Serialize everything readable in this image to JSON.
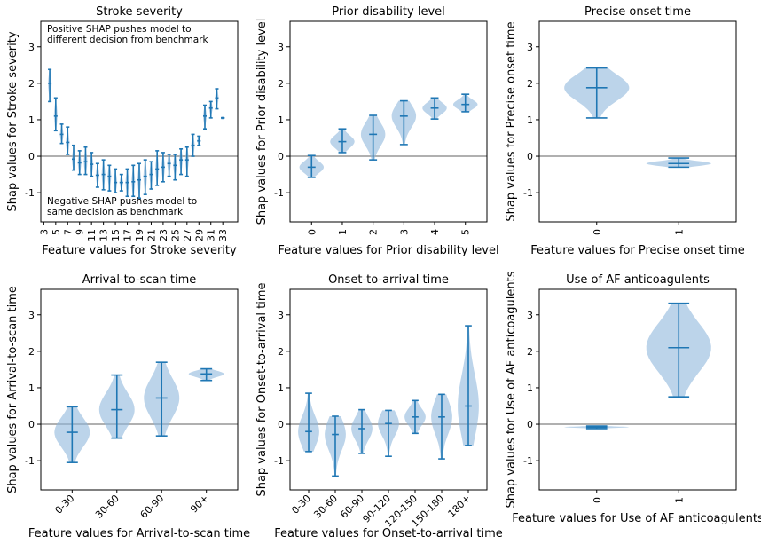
{
  "figure": {
    "background": "#ffffff"
  },
  "colors": {
    "violin_fill": "#8fb8dc",
    "line": "#1f77b4",
    "zero_line": "#808080"
  },
  "chart_data": [
    {
      "type": "violin",
      "title": "Stroke severity",
      "xlabel": "Feature values for Stroke severity",
      "ylabel": "Shap values for Stroke severity",
      "ylim": [
        -1.8,
        3.7
      ],
      "yticks": [
        -1,
        0,
        1,
        2,
        3
      ],
      "xtick_rotation": 90,
      "xlim": [
        2.5,
        35.5
      ],
      "categories": [
        "3",
        "5",
        "7",
        "9",
        "11",
        "13",
        "15",
        "17",
        "19",
        "21",
        "23",
        "25",
        "27",
        "29",
        "31",
        "33"
      ],
      "category_positions": [
        3,
        5,
        7,
        9,
        11,
        13,
        15,
        17,
        19,
        21,
        23,
        25,
        27,
        29,
        31,
        33
      ],
      "width": 0.6,
      "zero_line": true,
      "annotations": [
        {
          "text": "Positive SHAP pushes model to",
          "position": "top-left",
          "line": 1
        },
        {
          "text": "different decision from benchmark",
          "position": "top-left",
          "line": 2
        },
        {
          "text": "Negative SHAP pushes model to",
          "position": "bottom-left",
          "line": 1
        },
        {
          "text": "same decision as benchmark",
          "position": "bottom-left",
          "line": 2
        }
      ],
      "violins": [
        {
          "x": 4,
          "min": 1.5,
          "max": 2.38,
          "median": 1.98,
          "mean": 2.0
        },
        {
          "x": 5,
          "min": 0.7,
          "max": 1.6,
          "median": 1.12,
          "mean": 1.1
        },
        {
          "x": 6,
          "min": 0.35,
          "max": 0.88,
          "median": 0.6,
          "mean": 0.6
        },
        {
          "x": 7,
          "min": 0.05,
          "max": 0.8,
          "median": 0.38,
          "mean": 0.38
        },
        {
          "x": 8,
          "min": -0.38,
          "max": 0.3,
          "median": -0.08,
          "mean": -0.08
        },
        {
          "x": 9,
          "min": -0.5,
          "max": 0.15,
          "median": -0.18,
          "mean": -0.18
        },
        {
          "x": 10,
          "min": -0.5,
          "max": 0.25,
          "median": -0.15,
          "mean": -0.15
        },
        {
          "x": 11,
          "min": -0.55,
          "max": 0.1,
          "median": -0.22,
          "mean": -0.22
        },
        {
          "x": 12,
          "min": -0.85,
          "max": -0.2,
          "median": -0.52,
          "mean": -0.52
        },
        {
          "x": 13,
          "min": -0.92,
          "max": -0.1,
          "median": -0.5,
          "mean": -0.5
        },
        {
          "x": 14,
          "min": -0.95,
          "max": -0.25,
          "median": -0.55,
          "mean": -0.55
        },
        {
          "x": 15,
          "min": -1.0,
          "max": -0.35,
          "median": -0.72,
          "mean": -0.72
        },
        {
          "x": 16,
          "min": -0.95,
          "max": -0.5,
          "median": -0.72,
          "mean": -0.72
        },
        {
          "x": 17,
          "min": -1.1,
          "max": -0.35,
          "median": -0.72,
          "mean": -0.72
        },
        {
          "x": 18,
          "min": -1.1,
          "max": -0.25,
          "median": -0.7,
          "mean": -0.7
        },
        {
          "x": 19,
          "min": -1.15,
          "max": -0.2,
          "median": -0.65,
          "mean": -0.65
        },
        {
          "x": 20,
          "min": -1.05,
          "max": -0.1,
          "median": -0.55,
          "mean": -0.55
        },
        {
          "x": 21,
          "min": -0.9,
          "max": -0.15,
          "median": -0.5,
          "mean": -0.5
        },
        {
          "x": 22,
          "min": -0.8,
          "max": 0.15,
          "median": -0.35,
          "mean": -0.35
        },
        {
          "x": 23,
          "min": -0.7,
          "max": 0.1,
          "median": -0.3,
          "mean": -0.3
        },
        {
          "x": 24,
          "min": -0.55,
          "max": 0.05,
          "median": -0.2,
          "mean": -0.2
        },
        {
          "x": 25,
          "min": -0.65,
          "max": 0.05,
          "median": -0.25,
          "mean": -0.25
        },
        {
          "x": 26,
          "min": -0.5,
          "max": 0.2,
          "median": -0.1,
          "mean": -0.1
        },
        {
          "x": 27,
          "min": -0.55,
          "max": 0.25,
          "median": -0.1,
          "mean": -0.1
        },
        {
          "x": 28,
          "min": 0.0,
          "max": 0.6,
          "median": 0.3,
          "mean": 0.3
        },
        {
          "x": 29,
          "min": 0.3,
          "max": 0.55,
          "median": 0.42,
          "mean": 0.42
        },
        {
          "x": 30,
          "min": 0.75,
          "max": 1.4,
          "median": 1.1,
          "mean": 1.1
        },
        {
          "x": 31,
          "min": 1.05,
          "max": 1.5,
          "median": 1.32,
          "mean": 1.32
        },
        {
          "x": 32,
          "min": 1.3,
          "max": 1.85,
          "median": 1.6,
          "mean": 1.6
        },
        {
          "x": 33,
          "min": 1.05,
          "max": 1.05,
          "median": 1.05,
          "mean": 1.05
        }
      ]
    },
    {
      "type": "violin",
      "title": "Prior disability level",
      "xlabel": "Feature values for Prior disability level",
      "ylabel": "Shap values for Prior disability level",
      "ylim": [
        -1.8,
        3.7
      ],
      "yticks": [
        -1,
        0,
        1,
        2,
        3
      ],
      "xtick_rotation": 90,
      "xlim": [
        -0.7,
        5.7
      ],
      "categories": [
        "0",
        "1",
        "2",
        "3",
        "4",
        "5"
      ],
      "category_positions": [
        0,
        1,
        2,
        3,
        4,
        5
      ],
      "width": 0.8,
      "zero_line": true,
      "violins": [
        {
          "x": 0,
          "min": -0.58,
          "max": 0.02,
          "median": -0.3,
          "mean": -0.3
        },
        {
          "x": 1,
          "min": 0.1,
          "max": 0.75,
          "median": 0.4,
          "mean": 0.4
        },
        {
          "x": 2,
          "min": -0.1,
          "max": 1.12,
          "median": 0.6,
          "mean": 0.6
        },
        {
          "x": 3,
          "min": 0.32,
          "max": 1.52,
          "median": 1.1,
          "mean": 1.1
        },
        {
          "x": 4,
          "min": 1.02,
          "max": 1.6,
          "median": 1.32,
          "mean": 1.32
        },
        {
          "x": 5,
          "min": 1.22,
          "max": 1.7,
          "median": 1.42,
          "mean": 1.42
        }
      ]
    },
    {
      "type": "violin",
      "title": "Precise onset time",
      "xlabel": "Feature values for Precise onset time",
      "ylabel": "Shap values for Precise onset time",
      "ylim": [
        -1.8,
        3.7
      ],
      "yticks": [
        -1,
        0,
        1,
        2,
        3
      ],
      "xtick_rotation": 90,
      "xlim": [
        -0.7,
        1.7
      ],
      "categories": [
        "0",
        "1"
      ],
      "category_positions": [
        0,
        1
      ],
      "width": 0.8,
      "zero_line": true,
      "violins": [
        {
          "x": 0,
          "min": 1.05,
          "max": 2.42,
          "median": 1.88,
          "mean": 1.88
        },
        {
          "x": 1,
          "min": -0.3,
          "max": -0.05,
          "median": -0.2,
          "mean": -0.2
        }
      ]
    },
    {
      "type": "violin",
      "title": "Arrival-to-scan time",
      "xlabel": "Feature values for Arrival-to-scan time",
      "ylabel": "Shap values for Arrival-to-scan time",
      "ylim": [
        -1.8,
        3.7
      ],
      "yticks": [
        -1,
        0,
        1,
        2,
        3
      ],
      "xtick_rotation": 45,
      "xlim": [
        -0.7,
        3.7
      ],
      "categories": [
        "0-30",
        "30-60",
        "60-90",
        "90+"
      ],
      "category_positions": [
        0,
        1,
        2,
        3
      ],
      "width": 0.8,
      "zero_line": true,
      "violins": [
        {
          "x": 0,
          "min": -1.05,
          "max": 0.48,
          "median": -0.22,
          "mean": -0.22
        },
        {
          "x": 1,
          "min": -0.38,
          "max": 1.35,
          "median": 0.4,
          "mean": 0.4
        },
        {
          "x": 2,
          "min": -0.32,
          "max": 1.7,
          "median": 0.72,
          "mean": 0.72
        },
        {
          "x": 3,
          "min": 1.2,
          "max": 1.52,
          "median": 1.38,
          "mean": 1.38
        }
      ]
    },
    {
      "type": "violin",
      "title": "Onset-to-arrival time",
      "xlabel": "Feature values for Onset-to-arrival time",
      "ylabel": "Shap values for Onset-to-arrival time",
      "ylim": [
        -1.8,
        3.7
      ],
      "yticks": [
        -1,
        0,
        1,
        2,
        3
      ],
      "xtick_rotation": 45,
      "xlim": [
        -0.7,
        6.7
      ],
      "categories": [
        "0-30",
        "30-60",
        "60-90",
        "90-120",
        "120-150",
        "150-180",
        "180+"
      ],
      "category_positions": [
        0,
        1,
        2,
        3,
        4,
        5,
        6
      ],
      "width": 0.8,
      "zero_line": true,
      "violins": [
        {
          "x": 0,
          "min": -0.75,
          "max": 0.85,
          "median": -0.2,
          "mean": -0.2
        },
        {
          "x": 1,
          "min": -1.42,
          "max": 0.22,
          "median": -0.28,
          "mean": -0.28
        },
        {
          "x": 2,
          "min": -0.8,
          "max": 0.4,
          "median": -0.12,
          "mean": -0.12
        },
        {
          "x": 3,
          "min": -0.88,
          "max": 0.38,
          "median": 0.02,
          "mean": 0.02
        },
        {
          "x": 4,
          "min": -0.25,
          "max": 0.65,
          "median": 0.2,
          "mean": 0.2
        },
        {
          "x": 5,
          "min": -0.95,
          "max": 0.82,
          "median": 0.2,
          "mean": 0.2
        },
        {
          "x": 6,
          "min": -0.58,
          "max": 2.7,
          "median": 0.5,
          "mean": 0.5
        }
      ]
    },
    {
      "type": "violin",
      "title": "Use of AF anticoagulents",
      "xlabel": "Feature values for Use of AF anticoagulents",
      "ylabel": "Shap values for Use of AF anticoagulents",
      "ylim": [
        -1.8,
        3.7
      ],
      "yticks": [
        -1,
        0,
        1,
        2,
        3
      ],
      "xtick_rotation": 90,
      "xlim": [
        -0.7,
        1.7
      ],
      "categories": [
        "0",
        "1"
      ],
      "category_positions": [
        0,
        1
      ],
      "width": 0.8,
      "zero_line": true,
      "violins": [
        {
          "x": 0,
          "min": -0.12,
          "max": -0.05,
          "median": -0.08,
          "mean": -0.08
        },
        {
          "x": 1,
          "min": 0.75,
          "max": 3.32,
          "median": 2.1,
          "mean": 2.1
        }
      ]
    }
  ]
}
